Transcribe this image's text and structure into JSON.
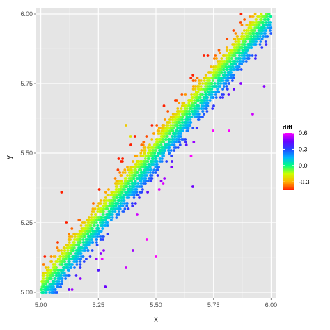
{
  "chart_data": {
    "type": "scatter",
    "title": "",
    "xlabel": "x",
    "ylabel": "y",
    "xlim": [
      4.98,
      6.02
    ],
    "ylim": [
      4.98,
      6.02
    ],
    "x_ticks": [
      {
        "value": 5.0,
        "label": "5.00"
      },
      {
        "value": 5.25,
        "label": "5.25"
      },
      {
        "value": 5.5,
        "label": "5.50"
      },
      {
        "value": 5.75,
        "label": "5.75"
      },
      {
        "value": 6.0,
        "label": "6.00"
      }
    ],
    "y_ticks": [
      {
        "value": 5.0,
        "label": "5.00"
      },
      {
        "value": 5.25,
        "label": "5.25"
      },
      {
        "value": 5.5,
        "label": "5.50"
      },
      {
        "value": 5.75,
        "label": "5.75"
      },
      {
        "value": 6.0,
        "label": "6.00"
      }
    ],
    "grid": true,
    "color_variable": "diff",
    "color_scale": {
      "stops": [
        {
          "value": 0.6,
          "color": "#ff00ff"
        },
        {
          "value": 0.45,
          "color": "#6a00ff"
        },
        {
          "value": 0.3,
          "color": "#2244ff"
        },
        {
          "value": 0.15,
          "color": "#00b4ff"
        },
        {
          "value": 0.0,
          "color": "#00ff80"
        },
        {
          "value": -0.15,
          "color": "#ccff00"
        },
        {
          "value": -0.3,
          "color": "#ffb000"
        },
        {
          "value": -0.45,
          "color": "#ff2000"
        }
      ],
      "legend_ticks": [
        {
          "value": 0.6,
          "label": "0.6"
        },
        {
          "value": 0.3,
          "label": "0.3"
        },
        {
          "value": 0.0,
          "label": "0.0"
        },
        {
          "value": -0.3,
          "label": "-0.3"
        }
      ]
    },
    "legend_position": "right",
    "band_description": "dense points near y = x, symmetric band of width ~0.15, y rounded to 0.01",
    "outliers": [
      {
        "x": 5.09,
        "y": 5.36,
        "diff": -0.45
      },
      {
        "x": 5.92,
        "y": 5.64,
        "diff": 0.55
      },
      {
        "x": 5.46,
        "y": 5.19,
        "diff": 0.6
      },
      {
        "x": 5.5,
        "y": 5.13,
        "diff": 0.6
      },
      {
        "x": 5.37,
        "y": 5.09,
        "diff": 0.55
      },
      {
        "x": 5.4,
        "y": 5.15,
        "diff": 0.5
      },
      {
        "x": 5.37,
        "y": 5.6,
        "diff": -0.25
      },
      {
        "x": 5.39,
        "y": 5.56,
        "diff": -0.2
      },
      {
        "x": 5.97,
        "y": 5.74,
        "diff": 0.48
      },
      {
        "x": 5.66,
        "y": 5.38,
        "diff": 0.45
      },
      {
        "x": 5.28,
        "y": 5.02,
        "diff": 0.45
      },
      {
        "x": 5.25,
        "y": 5.08,
        "diff": 0.4
      }
    ]
  }
}
